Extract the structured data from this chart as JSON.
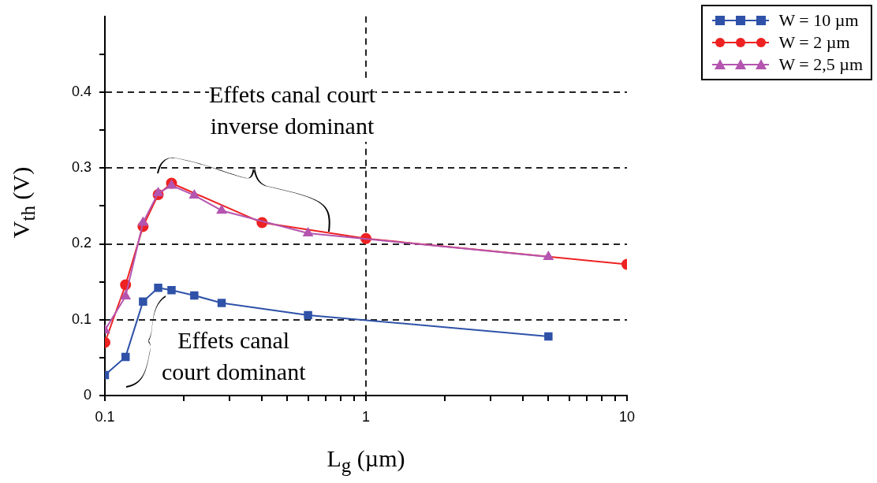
{
  "chart_data": {
    "type": "line",
    "xlabel": "L$_{g}$ (µm)",
    "ylabel": "V$_{th}$ (V)",
    "log": "x",
    "grid": true,
    "line_style": "solid",
    "legend": "top right",
    "xlim": [
      0.1,
      10
    ],
    "ylim": [
      0,
      0.5
    ],
    "xticks": [
      0.1,
      {
        "value": 0.2,
        "label": null
      },
      {
        "value": 0.3,
        "label": null
      },
      {
        "value": 0.4,
        "label": null
      },
      {
        "value": 0.5,
        "label": null
      },
      {
        "value": 0.6,
        "label": null
      },
      {
        "value": 0.7,
        "label": null
      },
      {
        "value": 0.8,
        "label": null
      },
      {
        "value": 0.9,
        "label": null
      },
      1,
      {
        "value": 2,
        "label": null
      },
      {
        "value": 3,
        "label": null
      },
      {
        "value": 4,
        "label": null
      },
      {
        "value": 5,
        "label": null
      },
      {
        "value": 6,
        "label": null
      },
      {
        "value": 7,
        "label": null
      },
      {
        "value": 8,
        "label": null
      },
      {
        "value": 9,
        "label": null
      },
      10
    ],
    "yticks": [
      0,
      {
        "value": 0.05,
        "label": null
      },
      0.1,
      {
        "value": 0.15,
        "label": null
      },
      0.2,
      {
        "value": 0.25,
        "label": null
      },
      0.3,
      {
        "value": 0.35,
        "label": null
      },
      0.4,
      {
        "value": 0.45,
        "label": null
      }
    ],
    "series": [
      {
        "name": "W = 10 µm",
        "color": "#2f52a8",
        "marker": "square",
        "x": [
          0.1,
          0.12,
          0.14,
          0.16,
          0.18,
          0.22,
          0.28,
          0.6,
          5
        ],
        "values": [
          0.027,
          0.051,
          0.124,
          0.142,
          0.139,
          0.132,
          0.122,
          0.106,
          0.078
        ]
      },
      {
        "name": "W = 2 µm",
        "color": "#ee2222",
        "marker": "circle",
        "x": [
          0.1,
          0.12,
          0.14,
          0.16,
          0.18,
          0.4,
          1,
          10
        ],
        "values": [
          0.07,
          0.146,
          0.223,
          0.265,
          0.28,
          0.228,
          0.207,
          0.173
        ]
      },
      {
        "name": "W = 2,5 µm",
        "color": "#b455b0",
        "marker": "triangle",
        "x": [
          0.1,
          0.12,
          0.14,
          0.16,
          0.18,
          0.22,
          0.28,
          0.6,
          5
        ],
        "values": [
          0.086,
          0.131,
          0.228,
          0.267,
          0.277,
          0.264,
          0.244,
          0.214,
          0.183
        ]
      }
    ],
    "annotations": [
      "Effets canal court\ninverse dominant",
      "Effets canal\ncourt dominant"
    ]
  }
}
